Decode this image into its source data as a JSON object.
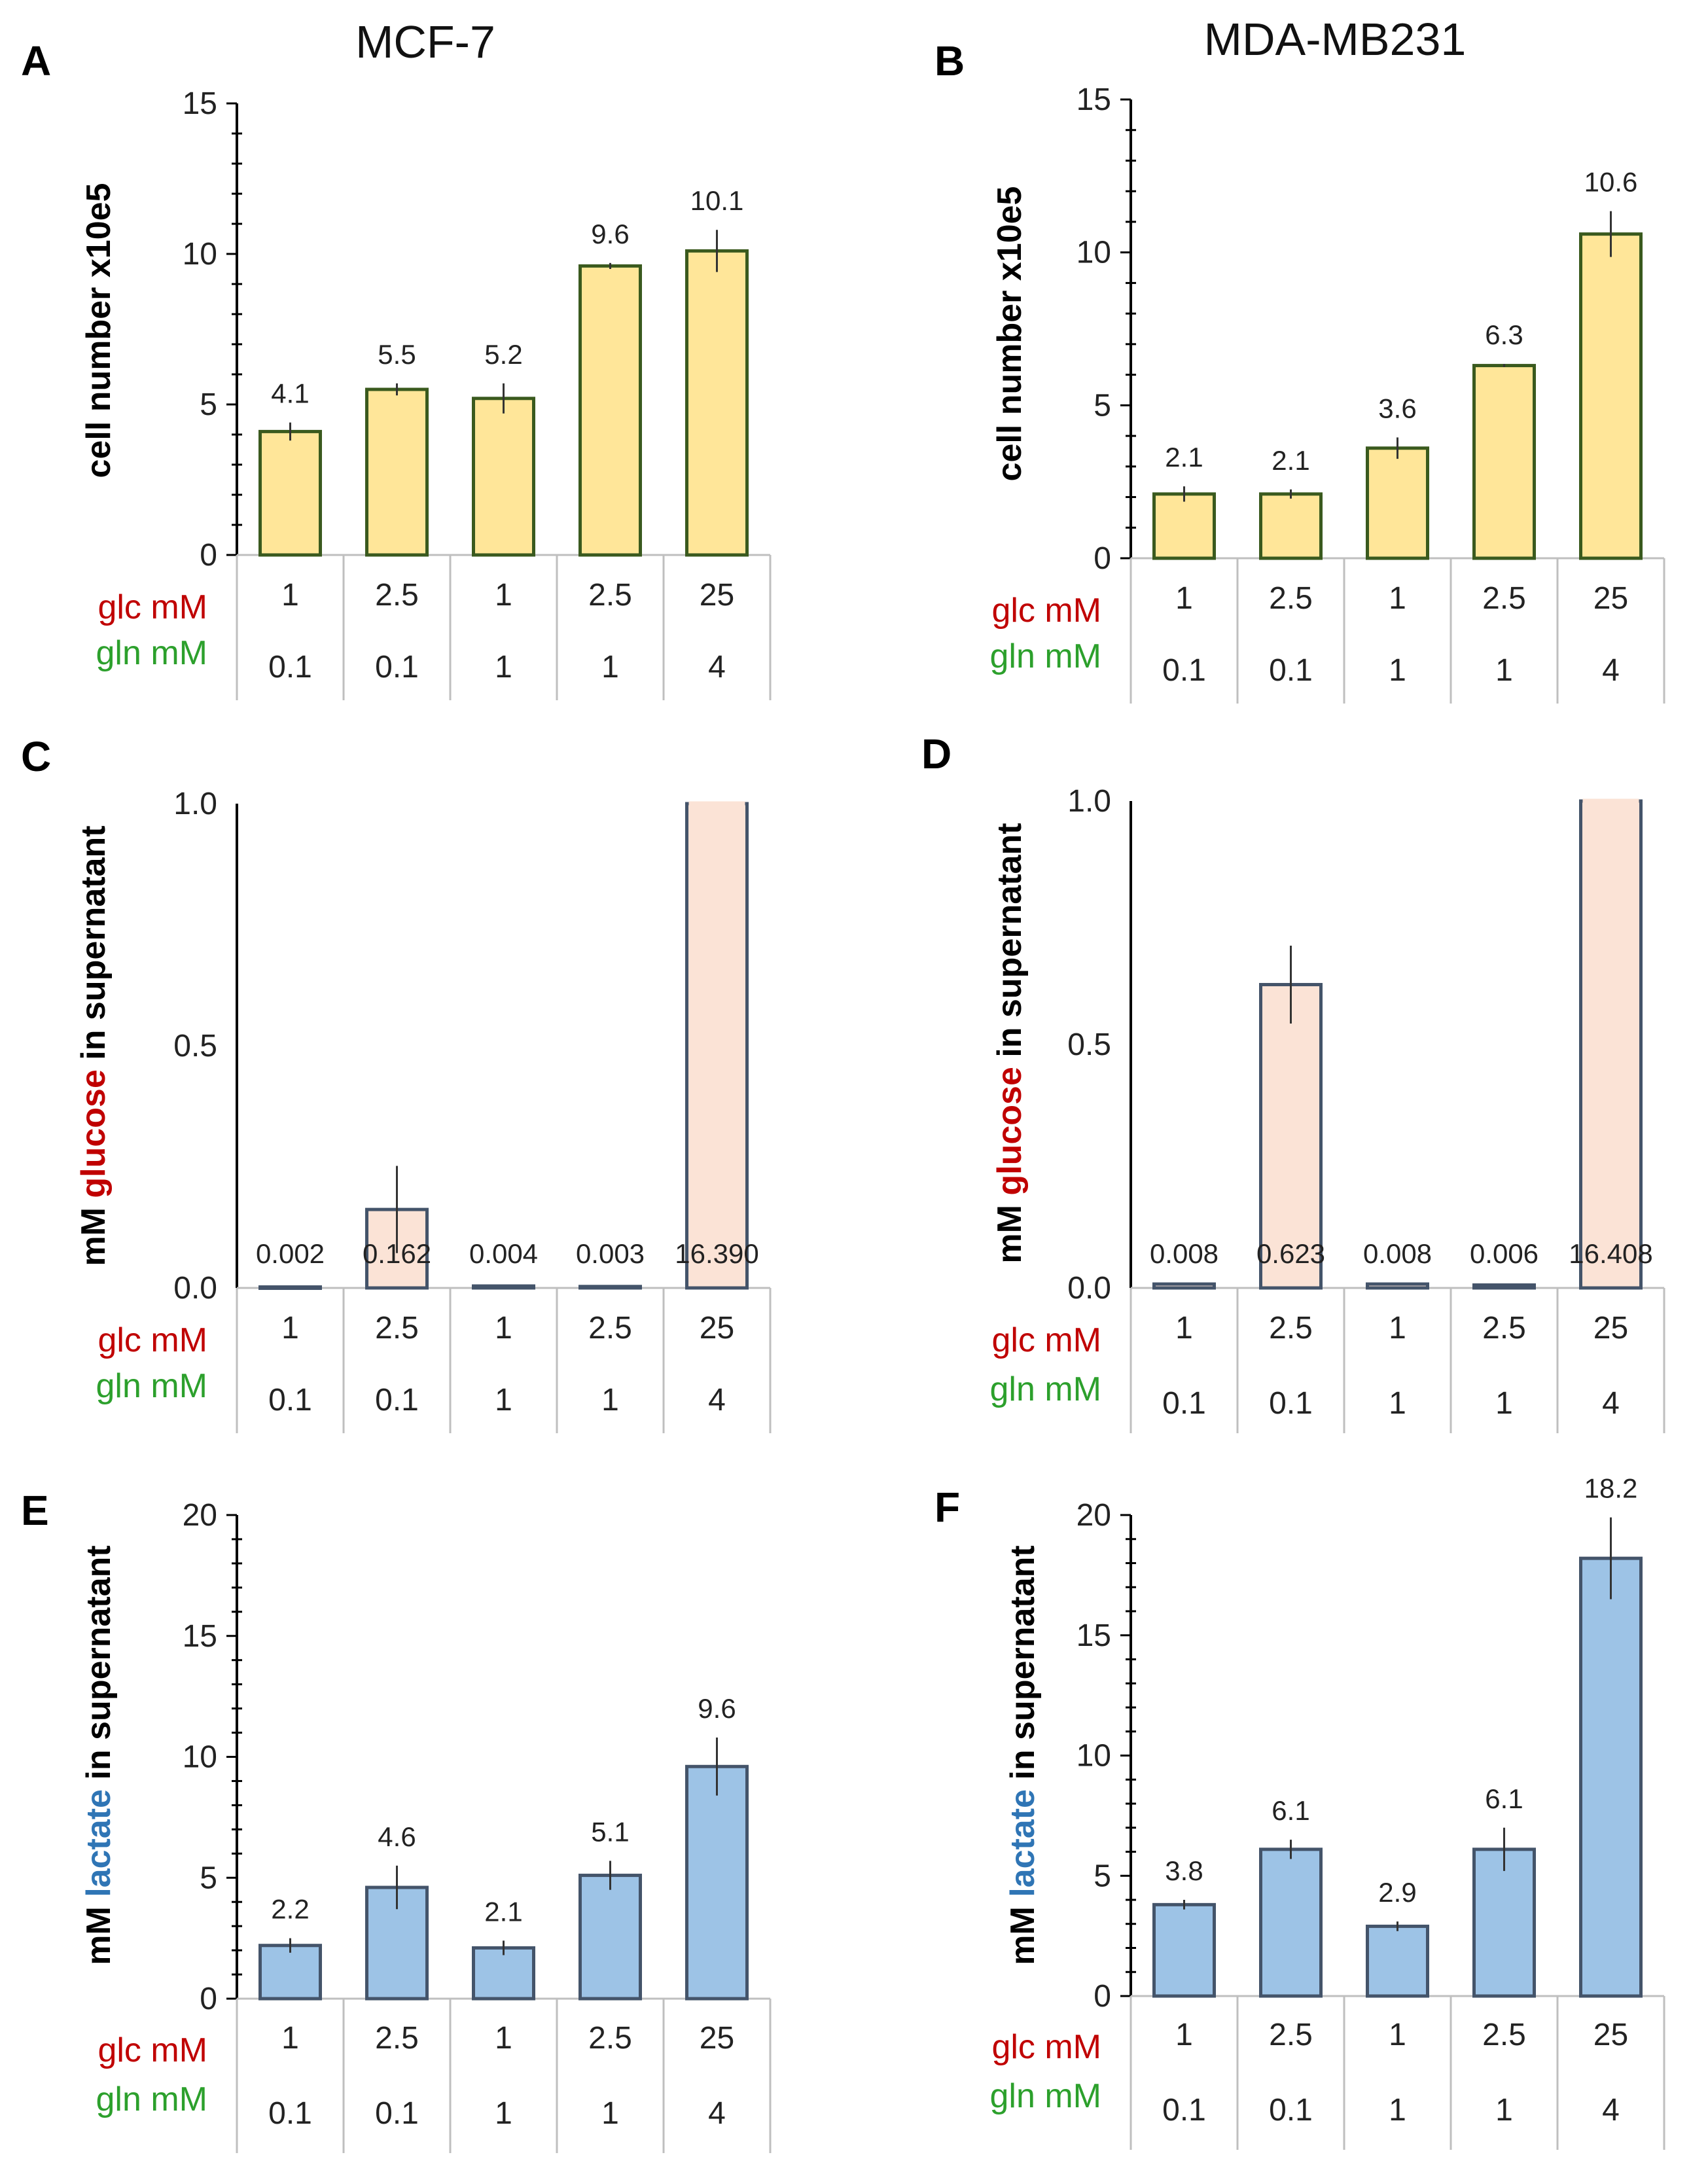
{
  "column_titles": [
    "MCF-7",
    "MDA-MB231"
  ],
  "colors": {
    "glc_label": "#c00000",
    "gln_label": "#2ca02c",
    "glucose_word": "#c00000",
    "lactate_word": "#2f75b5",
    "yellow_fill": "#ffe699",
    "yellow_stroke": "#3a5a1e",
    "peach_fill": "#fbe3d6",
    "peach_stroke": "#44546a",
    "blue_fill": "#9dc3e6",
    "blue_stroke": "#44546a",
    "axis": "#000000",
    "table_line": "#bfbfbf"
  },
  "table_rows": {
    "glc_label": "glc mM",
    "gln_label": "gln mM"
  },
  "chart_data": [
    {
      "panel": "A",
      "type": "bar",
      "title": "MCF-7",
      "ylabel_parts": [
        "cell number x10e5"
      ],
      "categories_glc": [
        "1",
        "2.5",
        "1",
        "2.5",
        "25"
      ],
      "categories_gln": [
        "0.1",
        "0.1",
        "1",
        "1",
        "4"
      ],
      "values": [
        4.1,
        5.5,
        5.2,
        9.6,
        10.1
      ],
      "errors": [
        0.3,
        0.2,
        0.5,
        0.1,
        0.7
      ],
      "data_labels": [
        "4.1",
        "5.5",
        "5.2",
        "9.6",
        "10.1"
      ],
      "ylim": [
        0,
        15
      ],
      "yticks": [
        0,
        5,
        10,
        15
      ],
      "ytick_labels": [
        "0",
        "5",
        "10",
        "15"
      ],
      "style": "yellow"
    },
    {
      "panel": "B",
      "type": "bar",
      "title": "MDA-MB231",
      "ylabel_parts": [
        "cell number x10e5"
      ],
      "categories_glc": [
        "1",
        "2.5",
        "1",
        "2.5",
        "25"
      ],
      "categories_gln": [
        "0.1",
        "0.1",
        "1",
        "1",
        "4"
      ],
      "values": [
        2.1,
        2.1,
        3.6,
        6.3,
        10.6
      ],
      "errors": [
        0.25,
        0.15,
        0.35,
        0.05,
        0.75
      ],
      "data_labels": [
        "2.1",
        "2.1",
        "3.6",
        "6.3",
        "10.6"
      ],
      "ylim": [
        0,
        15
      ],
      "yticks": [
        0,
        5,
        10,
        15
      ],
      "ytick_labels": [
        "0",
        "5",
        "10",
        "15"
      ],
      "style": "yellow"
    },
    {
      "panel": "C",
      "type": "bar",
      "title": "",
      "ylabel_parts": [
        "mM ",
        "glucose",
        " in supernatant"
      ],
      "categories_glc": [
        "1",
        "2.5",
        "1",
        "2.5",
        "25"
      ],
      "categories_gln": [
        "0.1",
        "0.1",
        "1",
        "1",
        "4"
      ],
      "values": [
        0.002,
        0.162,
        0.004,
        0.003,
        16.39
      ],
      "errors": [
        0,
        0.09,
        0,
        0,
        0
      ],
      "data_labels": [
        "0.002",
        "0.162",
        "0.004",
        "0.003",
        "16.390"
      ],
      "ylim": [
        0,
        1.0
      ],
      "yticks": [
        0,
        0.5,
        1.0
      ],
      "ytick_labels": [
        "0.0",
        "0.5",
        "1.0"
      ],
      "style": "peach"
    },
    {
      "panel": "D",
      "type": "bar",
      "title": "",
      "ylabel_parts": [
        "mM ",
        "glucose",
        " in supernatant"
      ],
      "categories_glc": [
        "1",
        "2.5",
        "1",
        "2.5",
        "25"
      ],
      "categories_gln": [
        "0.1",
        "0.1",
        "1",
        "1",
        "4"
      ],
      "values": [
        0.008,
        0.623,
        0.008,
        0.006,
        16.408
      ],
      "errors": [
        0,
        0.08,
        0,
        0,
        0
      ],
      "data_labels": [
        "0.008",
        "0.623",
        "0.008",
        "0.006",
        "16.408"
      ],
      "ylim": [
        0,
        1.0
      ],
      "yticks": [
        0,
        0.5,
        1.0
      ],
      "ytick_labels": [
        "0.0",
        "0.5",
        "1.0"
      ],
      "style": "peach"
    },
    {
      "panel": "E",
      "type": "bar",
      "title": "",
      "ylabel_parts": [
        "mM ",
        "lactate",
        " in supernatant"
      ],
      "categories_glc": [
        "1",
        "2.5",
        "1",
        "2.5",
        "25"
      ],
      "categories_gln": [
        "0.1",
        "0.1",
        "1",
        "1",
        "4"
      ],
      "values": [
        2.2,
        4.6,
        2.1,
        5.1,
        9.6
      ],
      "errors": [
        0.3,
        0.9,
        0.3,
        0.6,
        1.2
      ],
      "data_labels": [
        "2.2",
        "4.6",
        "2.1",
        "5.1",
        "9.6"
      ],
      "ylim": [
        0,
        20
      ],
      "yticks": [
        0,
        5,
        10,
        15,
        20
      ],
      "ytick_labels": [
        "0",
        "5",
        "10",
        "15",
        "20"
      ],
      "style": "blue"
    },
    {
      "panel": "F",
      "type": "bar",
      "title": "",
      "ylabel_parts": [
        "mM ",
        "lactate",
        " in supernatant"
      ],
      "categories_glc": [
        "1",
        "2.5",
        "1",
        "2.5",
        "25"
      ],
      "categories_gln": [
        "0.1",
        "0.1",
        "1",
        "1",
        "4"
      ],
      "values": [
        3.8,
        6.1,
        2.9,
        6.1,
        18.2
      ],
      "errors": [
        0.2,
        0.4,
        0.2,
        0.9,
        1.7
      ],
      "data_labels": [
        "3.8",
        "6.1",
        "2.9",
        "6.1",
        "18.2"
      ],
      "ylim": [
        0,
        20
      ],
      "yticks": [
        0,
        5,
        10,
        15,
        20
      ],
      "ytick_labels": [
        "0",
        "5",
        "10",
        "15",
        "20"
      ],
      "style": "blue"
    }
  ]
}
